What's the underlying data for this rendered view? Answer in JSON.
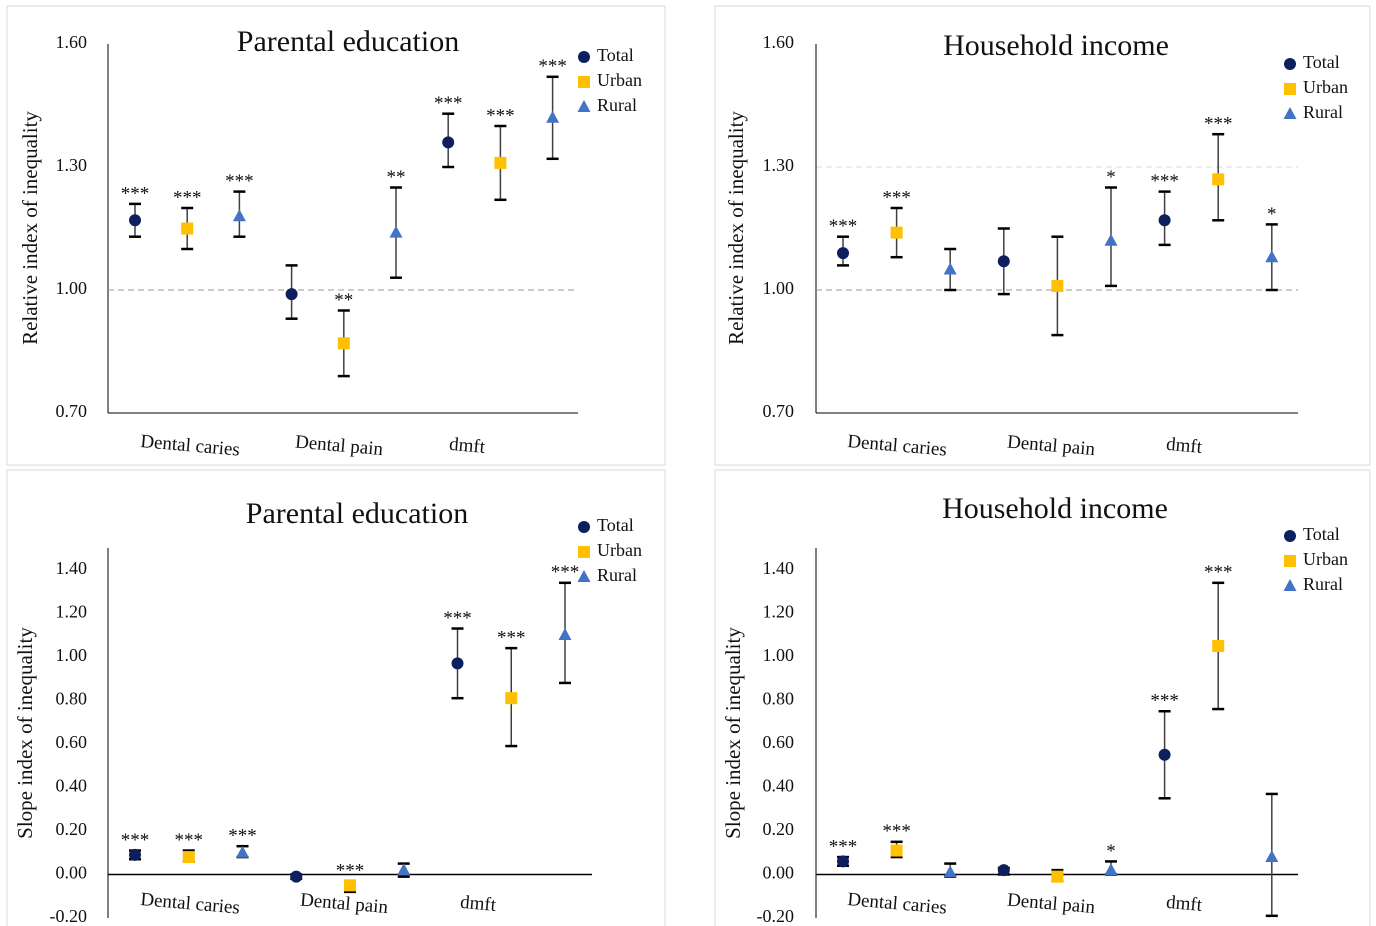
{
  "chart_data": [
    {
      "type": "errorbar",
      "title": "Parental education",
      "ylabel": "Relative index of inequality",
      "categories": [
        "Dental caries",
        "Dental pain",
        "dmft"
      ],
      "ylim": [
        0.7,
        1.6
      ],
      "yticks": [
        {
          "value": 0.7,
          "label": "0.70"
        },
        {
          "value": 1.0,
          "label": "1.00"
        },
        {
          "value": 1.3,
          "label": "1.30"
        },
        {
          "value": 1.6,
          "label": "1.60"
        }
      ],
      "refline": 1.0,
      "grid": false,
      "legend": "upper right",
      "series": [
        {
          "name": "Total",
          "color": "#0d1f5c",
          "marker": "circle",
          "values": [
            1.17,
            0.99,
            1.36
          ],
          "lower": [
            1.13,
            0.93,
            1.3
          ],
          "upper": [
            1.21,
            1.06,
            1.43
          ],
          "labels": [
            "***",
            null,
            "***"
          ]
        },
        {
          "name": "Urban",
          "color": "#ffc000",
          "marker": "square",
          "values": [
            1.15,
            0.87,
            1.31
          ],
          "lower": [
            1.1,
            0.79,
            1.22
          ],
          "upper": [
            1.2,
            0.95,
            1.4
          ],
          "labels": [
            "***",
            "**",
            "***"
          ]
        },
        {
          "name": "Rural",
          "color": "#4472c4",
          "marker": "triangle",
          "values": [
            1.18,
            1.14,
            1.42
          ],
          "lower": [
            1.13,
            1.03,
            1.32
          ],
          "upper": [
            1.24,
            1.25,
            1.52
          ],
          "labels": [
            "***",
            "**",
            "***"
          ]
        }
      ]
    },
    {
      "type": "errorbar",
      "title": "Household income",
      "ylabel": "Relative index of inequality",
      "categories": [
        "Dental caries",
        "Dental pain",
        "dmft"
      ],
      "ylim": [
        0.7,
        1.6
      ],
      "yticks": [
        {
          "value": 0.7,
          "label": "0.70"
        },
        {
          "value": 1.0,
          "label": "1.00"
        },
        {
          "value": 1.3,
          "label": "1.30"
        },
        {
          "value": 1.6,
          "label": "1.60"
        }
      ],
      "refline": 1.0,
      "grid": true,
      "legend": "upper right",
      "series": [
        {
          "name": "Total",
          "color": "#0d1f5c",
          "marker": "circle",
          "values": [
            1.09,
            1.07,
            1.17
          ],
          "lower": [
            1.06,
            0.99,
            1.11
          ],
          "upper": [
            1.13,
            1.15,
            1.24
          ],
          "labels": [
            "***",
            null,
            "***"
          ]
        },
        {
          "name": "Urban",
          "color": "#ffc000",
          "marker": "square",
          "values": [
            1.14,
            1.01,
            1.27
          ],
          "lower": [
            1.08,
            0.89,
            1.17
          ],
          "upper": [
            1.2,
            1.13,
            1.38
          ],
          "labels": [
            "***",
            null,
            "***"
          ]
        },
        {
          "name": "Rural",
          "color": "#4472c4",
          "marker": "triangle",
          "values": [
            1.05,
            1.12,
            1.08
          ],
          "lower": [
            1.0,
            1.01,
            1.0
          ],
          "upper": [
            1.1,
            1.25,
            1.16
          ],
          "labels": [
            null,
            "*",
            "*"
          ]
        }
      ]
    },
    {
      "type": "errorbar",
      "title": "Parental education",
      "ylabel": "Slope index of inequality",
      "categories": [
        "Dental caries",
        "Dental pain",
        "dmft"
      ],
      "ylim": [
        -0.2,
        1.5
      ],
      "yticks": [
        {
          "value": -0.2,
          "label": "-0.20"
        },
        {
          "value": 0,
          "label": "0.00"
        },
        {
          "value": 0.2,
          "label": "0.20"
        },
        {
          "value": 0.4,
          "label": "0.40"
        },
        {
          "value": 0.6,
          "label": "0.60"
        },
        {
          "value": 0.8,
          "label": "0.80"
        },
        {
          "value": 1.0,
          "label": "1.00"
        },
        {
          "value": 1.2,
          "label": "1.20"
        },
        {
          "value": 1.4,
          "label": "1.40"
        }
      ],
      "baseline": 0,
      "grid": false,
      "legend": "upper right",
      "series": [
        {
          "name": "Total",
          "color": "#0d1f5c",
          "marker": "circle",
          "values": [
            0.09,
            -0.01,
            0.97
          ],
          "lower": [
            0.07,
            -0.02,
            0.81
          ],
          "upper": [
            0.11,
            0.0,
            1.13
          ],
          "labels": [
            "***",
            null,
            "***"
          ]
        },
        {
          "name": "Urban",
          "color": "#ffc000",
          "marker": "square",
          "values": [
            0.08,
            -0.05,
            0.81
          ],
          "lower": [
            0.06,
            -0.08,
            0.59
          ],
          "upper": [
            0.11,
            -0.03,
            1.04
          ],
          "labels": [
            "***",
            "***",
            "***"
          ]
        },
        {
          "name": "Rural",
          "color": "#4472c4",
          "marker": "triangle",
          "values": [
            0.1,
            0.02,
            1.1
          ],
          "lower": [
            0.08,
            -0.01,
            0.88
          ],
          "upper": [
            0.13,
            0.05,
            1.34
          ],
          "labels": [
            "***",
            null,
            "***"
          ]
        }
      ]
    },
    {
      "type": "errorbar",
      "title": "Household income",
      "ylabel": "Slope index of inequality",
      "categories": [
        "Dental caries",
        "Dental pain",
        "dmft"
      ],
      "ylim": [
        -0.2,
        1.5
      ],
      "yticks": [
        {
          "value": -0.2,
          "label": "-0.20"
        },
        {
          "value": 0,
          "label": "0.00"
        },
        {
          "value": 0.2,
          "label": "0.20"
        },
        {
          "value": 0.4,
          "label": "0.40"
        },
        {
          "value": 0.6,
          "label": "0.60"
        },
        {
          "value": 0.8,
          "label": "0.80"
        },
        {
          "value": 1.0,
          "label": "1.00"
        },
        {
          "value": 1.2,
          "label": "1.20"
        },
        {
          "value": 1.4,
          "label": "1.40"
        }
      ],
      "baseline": 0,
      "grid": false,
      "legend": "upper right",
      "series": [
        {
          "name": "Total",
          "color": "#0d1f5c",
          "marker": "circle",
          "values": [
            0.06,
            0.02,
            0.55
          ],
          "lower": [
            0.04,
            0.0,
            0.35
          ],
          "upper": [
            0.08,
            0.03,
            0.75
          ],
          "labels": [
            "***",
            null,
            "***"
          ]
        },
        {
          "name": "Urban",
          "color": "#ffc000",
          "marker": "square",
          "values": [
            0.11,
            -0.01,
            1.05
          ],
          "lower": [
            0.08,
            -0.03,
            0.76
          ],
          "upper": [
            0.15,
            0.02,
            1.34
          ],
          "labels": [
            "***",
            null,
            "***"
          ]
        },
        {
          "name": "Rural",
          "color": "#4472c4",
          "marker": "triangle",
          "values": [
            0.01,
            0.02,
            0.08
          ],
          "lower": [
            -0.01,
            0.0,
            -0.19
          ],
          "upper": [
            0.05,
            0.06,
            0.37
          ],
          "labels": [
            null,
            "*",
            null
          ]
        }
      ]
    }
  ]
}
